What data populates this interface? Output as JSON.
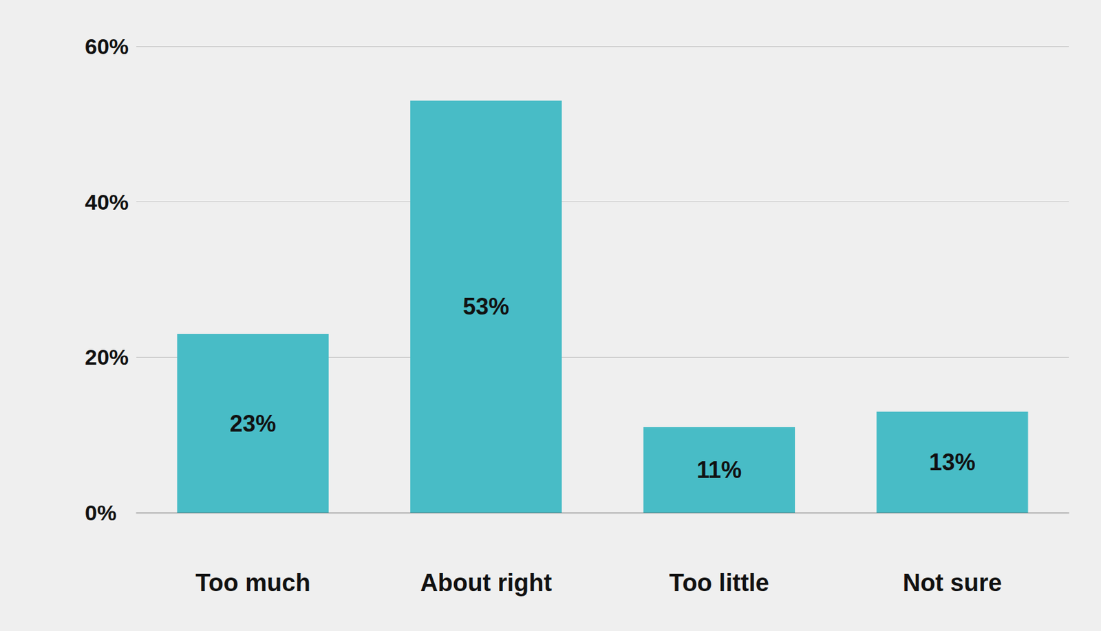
{
  "chart_data": {
    "type": "bar",
    "categories": [
      "Too much",
      "About right",
      "Too little",
      "Not sure"
    ],
    "values": [
      23,
      53,
      11,
      13
    ],
    "value_labels": [
      "23%",
      "53%",
      "11%",
      "13%"
    ],
    "color": "#48bcc6",
    "ylim": [
      0,
      60
    ],
    "yticks": [
      {
        "value": 0,
        "label": "0%"
      },
      {
        "value": 20,
        "label": "20%"
      },
      {
        "value": 40,
        "label": "40%"
      },
      {
        "value": 60,
        "label": "60%"
      }
    ],
    "grid": true,
    "data_labels": true
  }
}
